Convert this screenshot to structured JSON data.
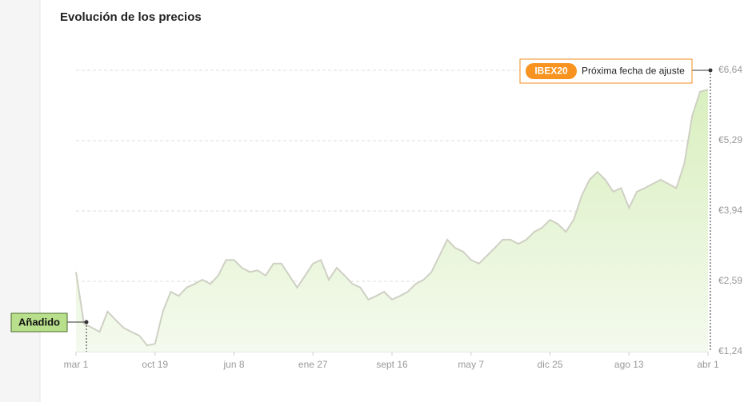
{
  "chart_data": {
    "type": "line",
    "title": "Evolución de los precios",
    "categories": [
      "mar 1",
      null,
      null,
      null,
      null,
      null,
      null,
      null,
      null,
      null,
      "oct 19",
      null,
      null,
      null,
      null,
      null,
      null,
      null,
      null,
      null,
      "jun 8",
      null,
      null,
      null,
      null,
      null,
      null,
      null,
      null,
      null,
      "ene 27",
      null,
      null,
      null,
      null,
      null,
      null,
      null,
      null,
      null,
      "sept 16",
      null,
      null,
      null,
      null,
      null,
      null,
      null,
      null,
      null,
      "may 7",
      null,
      null,
      null,
      null,
      null,
      null,
      null,
      null,
      null,
      "dic 25",
      null,
      null,
      null,
      null,
      null,
      null,
      null,
      null,
      null,
      "ago 13",
      null,
      null,
      null,
      null,
      null,
      null,
      null,
      null,
      null,
      "abr 1"
    ],
    "values": [
      2.77,
      1.78,
      1.7,
      1.62,
      2.01,
      1.85,
      1.7,
      1.62,
      1.55,
      1.36,
      1.39,
      2.01,
      2.39,
      2.31,
      2.47,
      2.54,
      2.62,
      2.54,
      2.7,
      3.0,
      3.0,
      2.85,
      2.77,
      2.8,
      2.7,
      2.93,
      2.93,
      2.7,
      2.47,
      2.7,
      2.93,
      3.0,
      2.62,
      2.85,
      2.7,
      2.54,
      2.47,
      2.24,
      2.31,
      2.39,
      2.24,
      2.31,
      2.39,
      2.54,
      2.62,
      2.77,
      3.08,
      3.39,
      3.23,
      3.16,
      3.0,
      2.93,
      3.08,
      3.23,
      3.39,
      3.39,
      3.31,
      3.39,
      3.54,
      3.62,
      3.77,
      3.69,
      3.54,
      3.77,
      4.23,
      4.54,
      4.69,
      4.54,
      4.31,
      4.38,
      4.0,
      4.31,
      4.38,
      4.46,
      4.54,
      4.46,
      4.38,
      4.85,
      5.77,
      6.23,
      6.27
    ],
    "color": "#cfd0c4",
    "ylim": [
      1.24,
      6.64
    ],
    "yticks": [
      {
        "value": 1.24,
        "label": "€1,24"
      },
      {
        "value": 2.59,
        "label": "€2,59"
      },
      {
        "value": 3.94,
        "label": "€3,94"
      },
      {
        "value": 5.29,
        "label": "€5,29"
      },
      {
        "value": 6.64,
        "label": "€6,64"
      }
    ],
    "grid": true,
    "annotations": {
      "added": "Añadido",
      "index": "IBEX20",
      "note": "Próxima fecha de ajuste"
    }
  }
}
